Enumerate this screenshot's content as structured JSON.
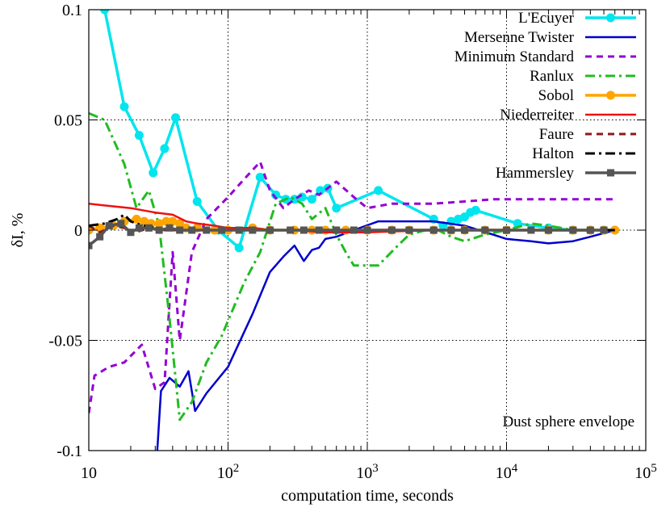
{
  "chart_data": {
    "type": "line",
    "title": "",
    "xlabel": "computation time, seconds",
    "ylabel": "δI, %",
    "xscale": "log",
    "xlim": [
      10,
      100000
    ],
    "ylim": [
      -0.1,
      0.1
    ],
    "grid": true,
    "legend_position": "top-right",
    "annotation": "Dust sphere envelope",
    "x_ticks": [
      {
        "value": 10,
        "label": "10"
      },
      {
        "value": 100,
        "label": "10",
        "exp": "2"
      },
      {
        "value": 1000,
        "label": "10",
        "exp": "3"
      },
      {
        "value": 10000,
        "label": "10",
        "exp": "4"
      },
      {
        "value": 100000,
        "label": "10",
        "exp": "5"
      }
    ],
    "y_ticks": [
      {
        "value": 0.1,
        "label": "0.1"
      },
      {
        "value": 0.05,
        "label": "0.05"
      },
      {
        "value": 0,
        "label": "0"
      },
      {
        "value": -0.05,
        "label": "-0.05"
      },
      {
        "value": -0.1,
        "label": "-0.1"
      }
    ],
    "series": [
      {
        "name": "L'Ecuyer",
        "color": "#00e5ee",
        "dash": "solid",
        "width": 3.5,
        "marker": "circle",
        "x": [
          10,
          13,
          18,
          23,
          29,
          35,
          42,
          60,
          85,
          120,
          170,
          220,
          260,
          300,
          340,
          400,
          460,
          520,
          600,
          1200,
          3000,
          3500,
          4000,
          4500,
          5000,
          5500,
          6000,
          12000,
          20000,
          30000,
          40000,
          50000,
          60000
        ],
        "y": [
          0.15,
          0.1,
          0.056,
          0.043,
          0.026,
          0.037,
          0.051,
          0.013,
          0,
          -0.008,
          0.024,
          0.016,
          0.014,
          0.014,
          0.015,
          0.014,
          0.018,
          0.019,
          0.01,
          0.018,
          0.005,
          0.002,
          0.004,
          0.005,
          0.006,
          0.008,
          0.009,
          0.003,
          0.001,
          0,
          0,
          0,
          0
        ]
      },
      {
        "name": "Mersenne Twister",
        "color": "#0000cc",
        "dash": "solid",
        "width": 2.5,
        "marker": "none",
        "x": [
          30,
          33,
          38,
          45,
          52,
          58,
          70,
          100,
          150,
          200,
          250,
          300,
          350,
          400,
          450,
          500,
          600,
          800,
          1200,
          2000,
          3000,
          5000,
          8000,
          10000,
          15000,
          20000,
          30000,
          40000,
          60000
        ],
        "y": [
          -0.115,
          -0.073,
          -0.067,
          -0.071,
          -0.064,
          -0.082,
          -0.074,
          -0.062,
          -0.038,
          -0.019,
          -0.012,
          -0.007,
          -0.014,
          -0.009,
          -0.008,
          -0.004,
          -0.003,
          0,
          0.004,
          0.004,
          0.004,
          0.002,
          -0.002,
          -0.004,
          -0.005,
          -0.006,
          -0.005,
          -0.003,
          0
        ]
      },
      {
        "name": "Minimum Standard",
        "color": "#9400d3",
        "dash": "8,6",
        "width": 3,
        "marker": "none",
        "x": [
          10,
          11,
          14,
          18,
          24,
          30,
          35,
          40,
          45,
          55,
          70,
          100,
          130,
          170,
          200,
          250,
          300,
          380,
          450,
          600,
          800,
          1000,
          1500,
          2000,
          3000,
          5000,
          8000,
          12000,
          20000,
          40000,
          60000
        ],
        "y": [
          -0.083,
          -0.066,
          -0.062,
          -0.06,
          -0.052,
          -0.072,
          -0.069,
          -0.01,
          -0.05,
          -0.01,
          0.005,
          0.015,
          0.023,
          0.031,
          0.018,
          0.01,
          0.014,
          0.018,
          0.016,
          0.022,
          0.015,
          0.01,
          0.012,
          0.012,
          0.012,
          0.013,
          0.014,
          0.014,
          0.014,
          0.014,
          0.014
        ]
      },
      {
        "name": "Ranlux",
        "color": "#22bb22",
        "dash": "12,5,3,5",
        "width": 3,
        "marker": "none",
        "x": [
          10,
          13,
          18,
          22,
          27,
          32,
          38,
          45,
          55,
          70,
          90,
          110,
          130,
          170,
          220,
          280,
          340,
          400,
          500,
          600,
          700,
          800,
          1200,
          1600,
          2000,
          3000,
          4000,
          5000,
          7000,
          10000,
          15000,
          20000,
          30000,
          50000,
          60000
        ],
        "y": [
          0.053,
          0.05,
          0.03,
          0.01,
          0.018,
          0.002,
          -0.04,
          -0.086,
          -0.078,
          -0.06,
          -0.048,
          -0.035,
          -0.024,
          -0.01,
          0.012,
          0.015,
          0.012,
          0.005,
          0.01,
          -0.002,
          -0.01,
          -0.016,
          -0.016,
          -0.008,
          -0.002,
          0.001,
          -0.003,
          -0.005,
          -0.002,
          0,
          0.003,
          0.002,
          0,
          0,
          0
        ]
      },
      {
        "name": "Sobol",
        "color": "#ffa500",
        "dash": "solid",
        "width": 3.5,
        "marker": "circle",
        "x": [
          10,
          12,
          15,
          18,
          22,
          25,
          28,
          32,
          36,
          40,
          45,
          50,
          60,
          80,
          100,
          150,
          200,
          300,
          400,
          500,
          700,
          1000,
          1500,
          2000,
          3000,
          4000,
          5000,
          7000,
          10000,
          20000,
          30000,
          40000,
          50000,
          60000
        ],
        "y": [
          0,
          0.001,
          0.002,
          0.004,
          0.005,
          0.004,
          0.003,
          0.003,
          0.004,
          0.004,
          0.003,
          0.001,
          0.001,
          0,
          0,
          0.001,
          0,
          0,
          0,
          0,
          0,
          0,
          0,
          0,
          0,
          0,
          0,
          0,
          0,
          0,
          0,
          0,
          0,
          0
        ]
      },
      {
        "name": "Niederreiter",
        "color": "#ee1111",
        "dash": "solid",
        "width": 2.5,
        "marker": "none",
        "x": [
          10,
          14,
          20,
          30,
          40,
          50,
          60,
          80,
          100,
          150,
          200,
          300,
          500,
          1000,
          3000,
          10000,
          60000
        ],
        "y": [
          0.012,
          0.011,
          0.01,
          0.008,
          0.007,
          0.004,
          0.003,
          0.002,
          0.001,
          0.001,
          0,
          0,
          -0.001,
          -0.001,
          0,
          0,
          0
        ]
      },
      {
        "name": "Faure",
        "color": "#8b1a1a",
        "dash": "8,6",
        "width": 3,
        "marker": "none",
        "x": [
          10,
          12,
          15,
          18,
          20,
          24,
          28,
          35,
          45,
          60,
          100,
          200,
          500,
          1000,
          5000,
          60000
        ],
        "y": [
          0.002,
          -0.001,
          0.002,
          0.001,
          -0.002,
          0,
          0.001,
          0,
          0,
          0,
          0,
          0,
          0,
          0,
          0,
          0
        ]
      },
      {
        "name": "Halton",
        "color": "#000000",
        "dash": "12,5,3,5",
        "width": 3,
        "marker": "none",
        "x": [
          10,
          13,
          16,
          18,
          20,
          22,
          25,
          30,
          40,
          60,
          100,
          200,
          500,
          1000,
          5000,
          60000
        ],
        "y": [
          0.002,
          0.003,
          0.005,
          0.007,
          0.004,
          0.003,
          0.002,
          0.001,
          0,
          0,
          0,
          0,
          0,
          0,
          0,
          0
        ]
      },
      {
        "name": "Hammersley",
        "color": "#555555",
        "dash": "solid",
        "width": 3.5,
        "marker": "square",
        "x": [
          10,
          12,
          14,
          17,
          20,
          23,
          27,
          32,
          38,
          45,
          55,
          70,
          90,
          120,
          150,
          200,
          280,
          350,
          450,
          600,
          800,
          1000,
          1500,
          2000,
          3000,
          4000,
          5000,
          7000,
          10000,
          15000,
          20000,
          30000,
          40000,
          50000
        ],
        "y": [
          -0.007,
          -0.003,
          0.002,
          0.003,
          -0.001,
          0.001,
          0.001,
          0,
          0.001,
          0,
          0,
          0,
          0,
          0,
          0,
          0,
          0,
          0,
          0,
          0,
          0,
          0,
          0,
          0,
          0,
          0,
          0,
          0,
          0,
          0,
          0,
          0,
          0,
          0
        ]
      }
    ]
  }
}
